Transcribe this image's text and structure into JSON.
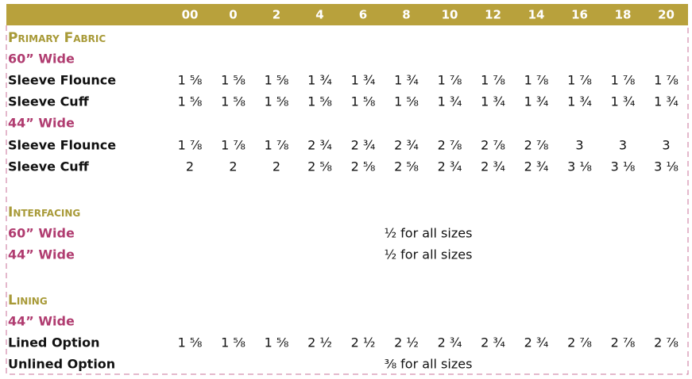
{
  "header": {
    "sizes": [
      "00",
      "0",
      "2",
      "4",
      "6",
      "8",
      "10",
      "12",
      "14",
      "16",
      "18",
      "20"
    ]
  },
  "sections": [
    {
      "title": "Primary Fabric",
      "groups": [
        {
          "width": "60” Wide",
          "rows": [
            {
              "label": "Sleeve Flounce",
              "values": [
                "1 ⅝",
                "1 ⅝",
                "1 ⅝",
                "1 ¾",
                "1 ¾",
                "1 ¾",
                "1 ⅞",
                "1 ⅞",
                "1 ⅞",
                "1 ⅞",
                "1 ⅞",
                "1 ⅞"
              ]
            },
            {
              "label": "Sleeve Cuff",
              "values": [
                "1 ⅝",
                "1 ⅝",
                "1 ⅝",
                "1 ⅝",
                "1 ⅝",
                "1 ⅝",
                "1 ¾",
                "1 ¾",
                "1 ¾",
                "1 ¾",
                "1 ¾",
                "1 ¾"
              ]
            }
          ]
        },
        {
          "width": "44” Wide",
          "rows": [
            {
              "label": "Sleeve Flounce",
              "values": [
                "1 ⅞",
                "1 ⅞",
                "1 ⅞",
                "2 ¾",
                "2 ¾",
                "2 ¾",
                "2 ⅞",
                "2 ⅞",
                "2 ⅞",
                "3",
                "3",
                "3"
              ]
            },
            {
              "label": "Sleeve Cuff",
              "values": [
                "2",
                "2",
                "2",
                "2 ⅝",
                "2 ⅝",
                "2 ⅝",
                "2 ¾",
                "2 ¾",
                "2 ¾",
                "3 ⅛",
                "3 ⅛",
                "3 ⅛"
              ]
            }
          ]
        }
      ]
    },
    {
      "title": "Interfacing",
      "groups": [
        {
          "width": "60” Wide",
          "note": "½ for all sizes"
        },
        {
          "width": "44” Wide",
          "note": "½ for all sizes"
        }
      ]
    },
    {
      "title": "Lining",
      "groups": [
        {
          "width": "44” Wide",
          "rows": [
            {
              "label": "Lined Option",
              "values": [
                "1 ⅝",
                "1 ⅝",
                "1 ⅝",
                "2 ½",
                "2 ½",
                "2 ½",
                "2 ¾",
                "2 ¾",
                "2 ¾",
                "2 ⅞",
                "2 ⅞",
                "2 ⅞"
              ]
            },
            {
              "label": "Unlined Option",
              "note": "⅜ for all sizes"
            }
          ]
        }
      ]
    }
  ]
}
